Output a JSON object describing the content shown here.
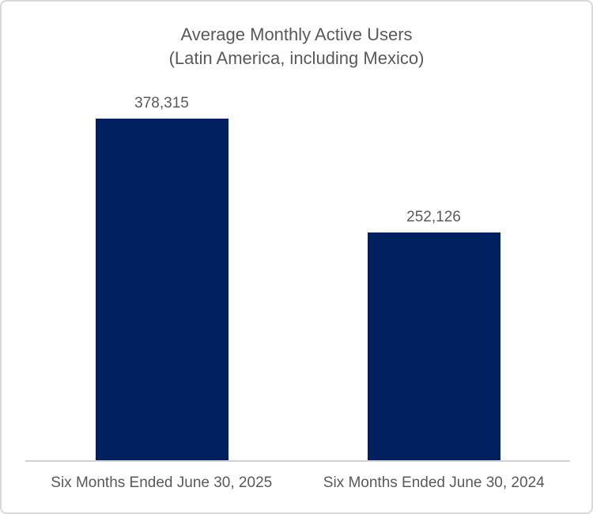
{
  "chart_data": {
    "type": "bar",
    "title": "Average Monthly Active Users",
    "subtitle": "(Latin America, including Mexico)",
    "categories": [
      "Six Months Ended June 30, 2025",
      "Six Months Ended June 30, 2024"
    ],
    "values": [
      378315,
      252126
    ],
    "value_labels": [
      "378,315",
      "252,126"
    ],
    "xlabel": "",
    "ylabel": "",
    "ylim": [
      0,
      420000
    ],
    "grid": false,
    "legend": false,
    "bar_color": "#002060",
    "text_color": "#595959",
    "axis_line_color": "#d2d2d2"
  }
}
